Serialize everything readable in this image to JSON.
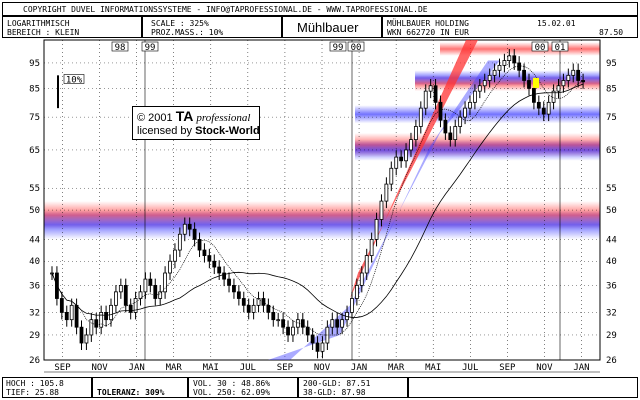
{
  "header": {
    "copyright": "COPYRIGHT  DUVEL INFORMATIONSSYSTEME - INFO@TAPROFESSIONAL.DE - WWW.TAPROFESSIONAL.DE",
    "scale_type": "LOGARITHMISCH",
    "range": "BEREICH : KLEIN",
    "scale_label": "SCALE : 325%",
    "prozmass": "PROZ.MASS.: 10%",
    "title": "Mühlbauer",
    "company": "MÜHLBAUER HOLDING",
    "wkn": "WKN 662720   IN EUR",
    "date": "15.02.01",
    "last_price": "87.50"
  },
  "copyright_box": {
    "line1_prefix": "© 2001",
    "line1_brand": "TA",
    "line1_suffix": "professional",
    "line2_prefix": "licensed by",
    "line2_brand": "Stock-World"
  },
  "footer": {
    "hoch": "HOCH : 105.8",
    "tief": "TIEF: 25.88",
    "toleranz": "TOLERANZ: 309%",
    "vol30": "VOL. 30 : 48.86%",
    "vol250": "VOL. 250: 62.09%",
    "gld200": "200-GLD: 87.51",
    "gld38": "38-GLD: 87.98"
  },
  "chart_data": {
    "type": "candlestick",
    "y_scale": "log",
    "ylim": [
      26,
      105
    ],
    "y_ticks": [
      26,
      29,
      32,
      36,
      40,
      44,
      50,
      55,
      65,
      75,
      85,
      95
    ],
    "x_labels": [
      "SEP",
      "NOV",
      "JAN",
      "MAR",
      "MAI",
      "JUL",
      "SEP",
      "NOV",
      "JAN",
      "MAR",
      "MAI",
      "JUL",
      "SEP",
      "NOV",
      "JAN"
    ],
    "year_markers": [
      "98",
      "99",
      "99",
      "00",
      "00",
      "01"
    ],
    "percent_marker": "10%",
    "closes": [
      38,
      34,
      32,
      31,
      33,
      30,
      28,
      29,
      31,
      30,
      32,
      31,
      33,
      35,
      36,
      33,
      32,
      34,
      35,
      37,
      36,
      34,
      35,
      38,
      40,
      42,
      45,
      47,
      46,
      44,
      42,
      41,
      40,
      39,
      38,
      37,
      36,
      35,
      34,
      33,
      32,
      33,
      34,
      33,
      32,
      31,
      31,
      30,
      29,
      30,
      31,
      30,
      29,
      28,
      27,
      28,
      30,
      31,
      30,
      31,
      32,
      34,
      36,
      38,
      41,
      44,
      48,
      52,
      56,
      60,
      63,
      62,
      65,
      68,
      72,
      78,
      84,
      86,
      80,
      74,
      70,
      68,
      72,
      75,
      78,
      80,
      84,
      86,
      88,
      90,
      92,
      94,
      96,
      98,
      95,
      92,
      88,
      85,
      80,
      78,
      76,
      80,
      84,
      86,
      88,
      90,
      92,
      88,
      87.5
    ],
    "bands": [
      {
        "color": "#ff0000",
        "y_from": 46,
        "y_to": 52
      },
      {
        "color": "#0000ff",
        "y_from": 44,
        "y_to": 50
      },
      {
        "color": "#ff0000",
        "y_from": 63,
        "y_to": 70
      },
      {
        "color": "#0000ff",
        "y_from": 62,
        "y_to": 68
      },
      {
        "color": "#0000ff",
        "y_from": 73,
        "y_to": 79
      },
      {
        "color": "#ff0000",
        "y_from": 84,
        "y_to": 90
      },
      {
        "color": "#0000ff",
        "y_from": 86,
        "y_to": 92
      },
      {
        "color": "#ff0000",
        "y_from": 98,
        "y_to": 104
      }
    ],
    "colors": {
      "up_channel": "#ff3333",
      "down_channel": "#4444ff",
      "price": "#000000",
      "highlight": "#ffff00"
    }
  }
}
